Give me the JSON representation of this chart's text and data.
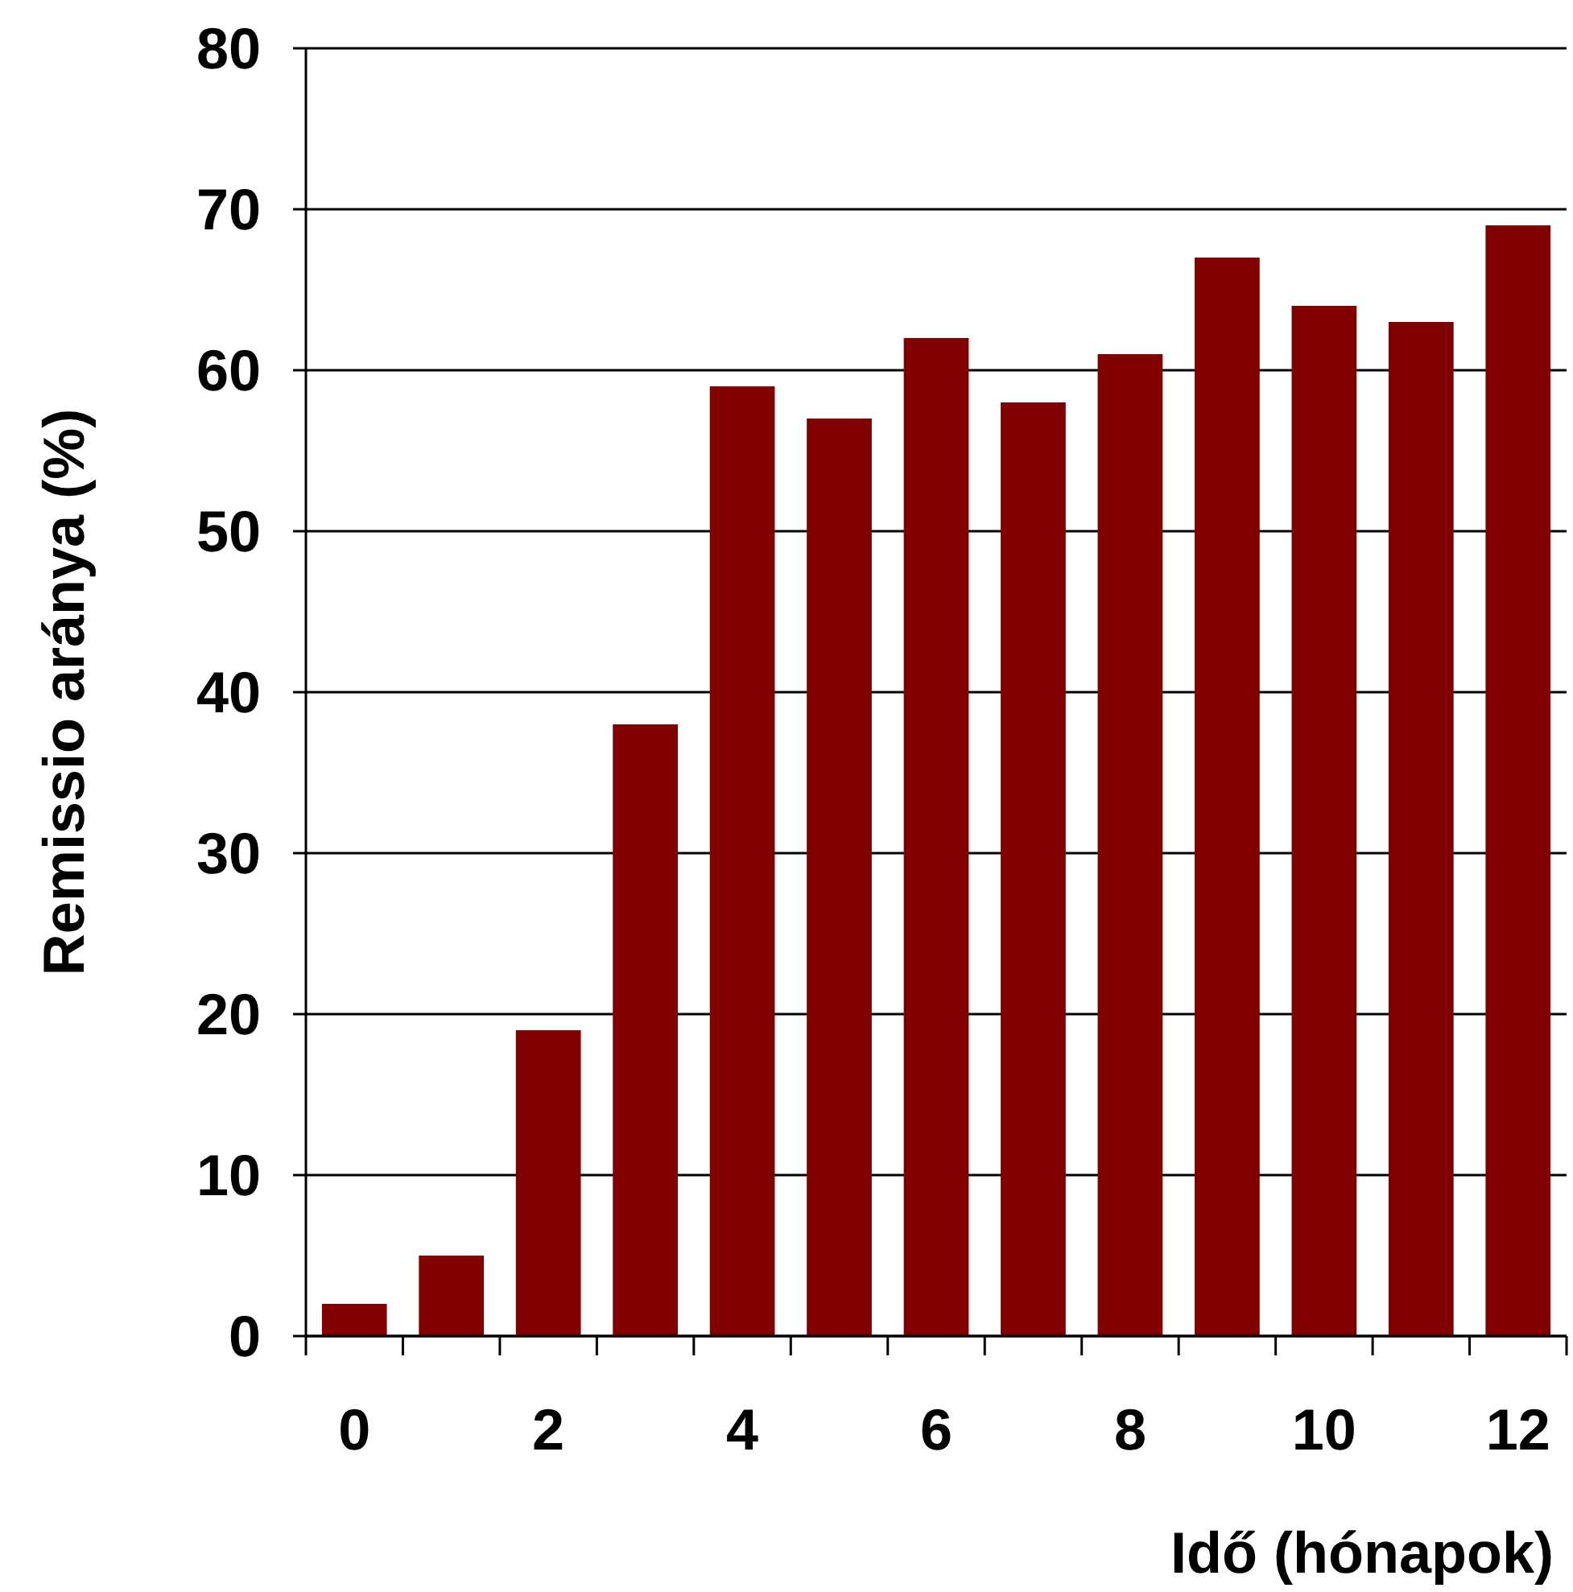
{
  "chart_data": {
    "type": "bar",
    "xlabel": "Idő (hónapok)",
    "ylabel": "Remissio aránya (%)",
    "categories": [
      "0",
      null,
      "2",
      null,
      "4",
      null,
      "6",
      null,
      "8",
      null,
      "10",
      null,
      "12"
    ],
    "values": [
      2,
      5,
      19,
      38,
      59,
      57,
      62,
      58,
      61,
      67,
      64,
      63,
      69
    ],
    "color": "#800000",
    "ylim": [
      0,
      80
    ],
    "yticks": [
      0,
      10,
      20,
      30,
      40,
      50,
      60,
      70,
      80
    ],
    "grid": "y"
  }
}
